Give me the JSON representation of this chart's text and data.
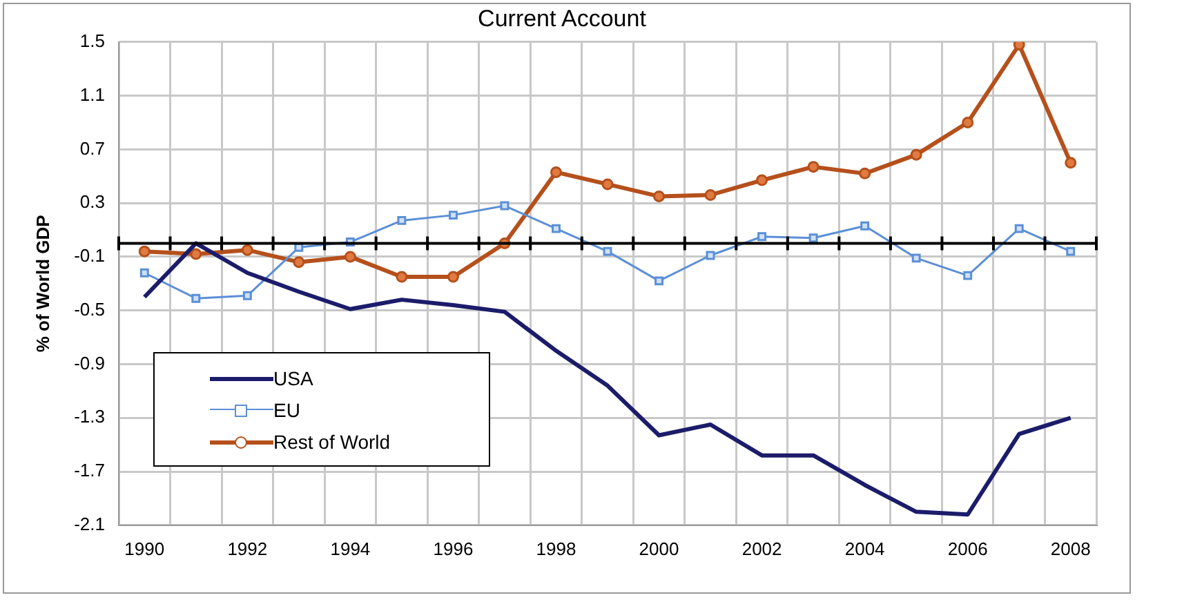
{
  "chart_data": {
    "type": "line",
    "title": "Current Account",
    "ylabel": "% of World GDP",
    "categories": [
      "1990",
      null,
      "1992",
      null,
      "1994",
      null,
      "1996",
      null,
      "1998",
      null,
      "2000",
      null,
      "2002",
      null,
      "2004",
      null,
      "2006",
      null,
      "2008"
    ],
    "series": [
      {
        "name": "USA",
        "color": "#1c1c6b",
        "marker": "none",
        "values": [
          -0.4,
          0.0,
          -0.22,
          -0.36,
          -0.49,
          -0.42,
          -0.46,
          -0.51,
          -0.8,
          -1.06,
          -1.43,
          -1.35,
          -1.58,
          -1.58,
          -1.8,
          -2.0,
          -2.02,
          -1.42,
          -1.3
        ]
      },
      {
        "name": "EU",
        "color": "#5b8fd6",
        "marker": "square",
        "values": [
          -0.22,
          -0.41,
          -0.39,
          -0.03,
          0.01,
          0.17,
          0.21,
          0.28,
          0.11,
          -0.06,
          -0.28,
          -0.09,
          0.05,
          0.04,
          0.13,
          -0.11,
          -0.24,
          0.11,
          -0.06
        ]
      },
      {
        "name": "Rest of World",
        "color": "#b5501c",
        "marker": "circle",
        "values": [
          -0.06,
          -0.08,
          -0.05,
          -0.14,
          -0.1,
          -0.25,
          -0.25,
          0.0,
          0.53,
          0.44,
          0.35,
          0.36,
          0.47,
          0.57,
          0.52,
          0.66,
          0.9,
          1.48,
          0.6
        ]
      }
    ],
    "ylim": [
      -2.1,
      1.5
    ],
    "yticks": [
      -2.1,
      -1.7,
      -1.3,
      -0.9,
      -0.5,
      -0.1,
      0.3,
      0.7,
      1.1,
      1.5
    ],
    "ref_lines": [
      {
        "axis": "y",
        "value": 0,
        "color": "#000000"
      }
    ],
    "grid": true,
    "legend": "bottom left"
  }
}
